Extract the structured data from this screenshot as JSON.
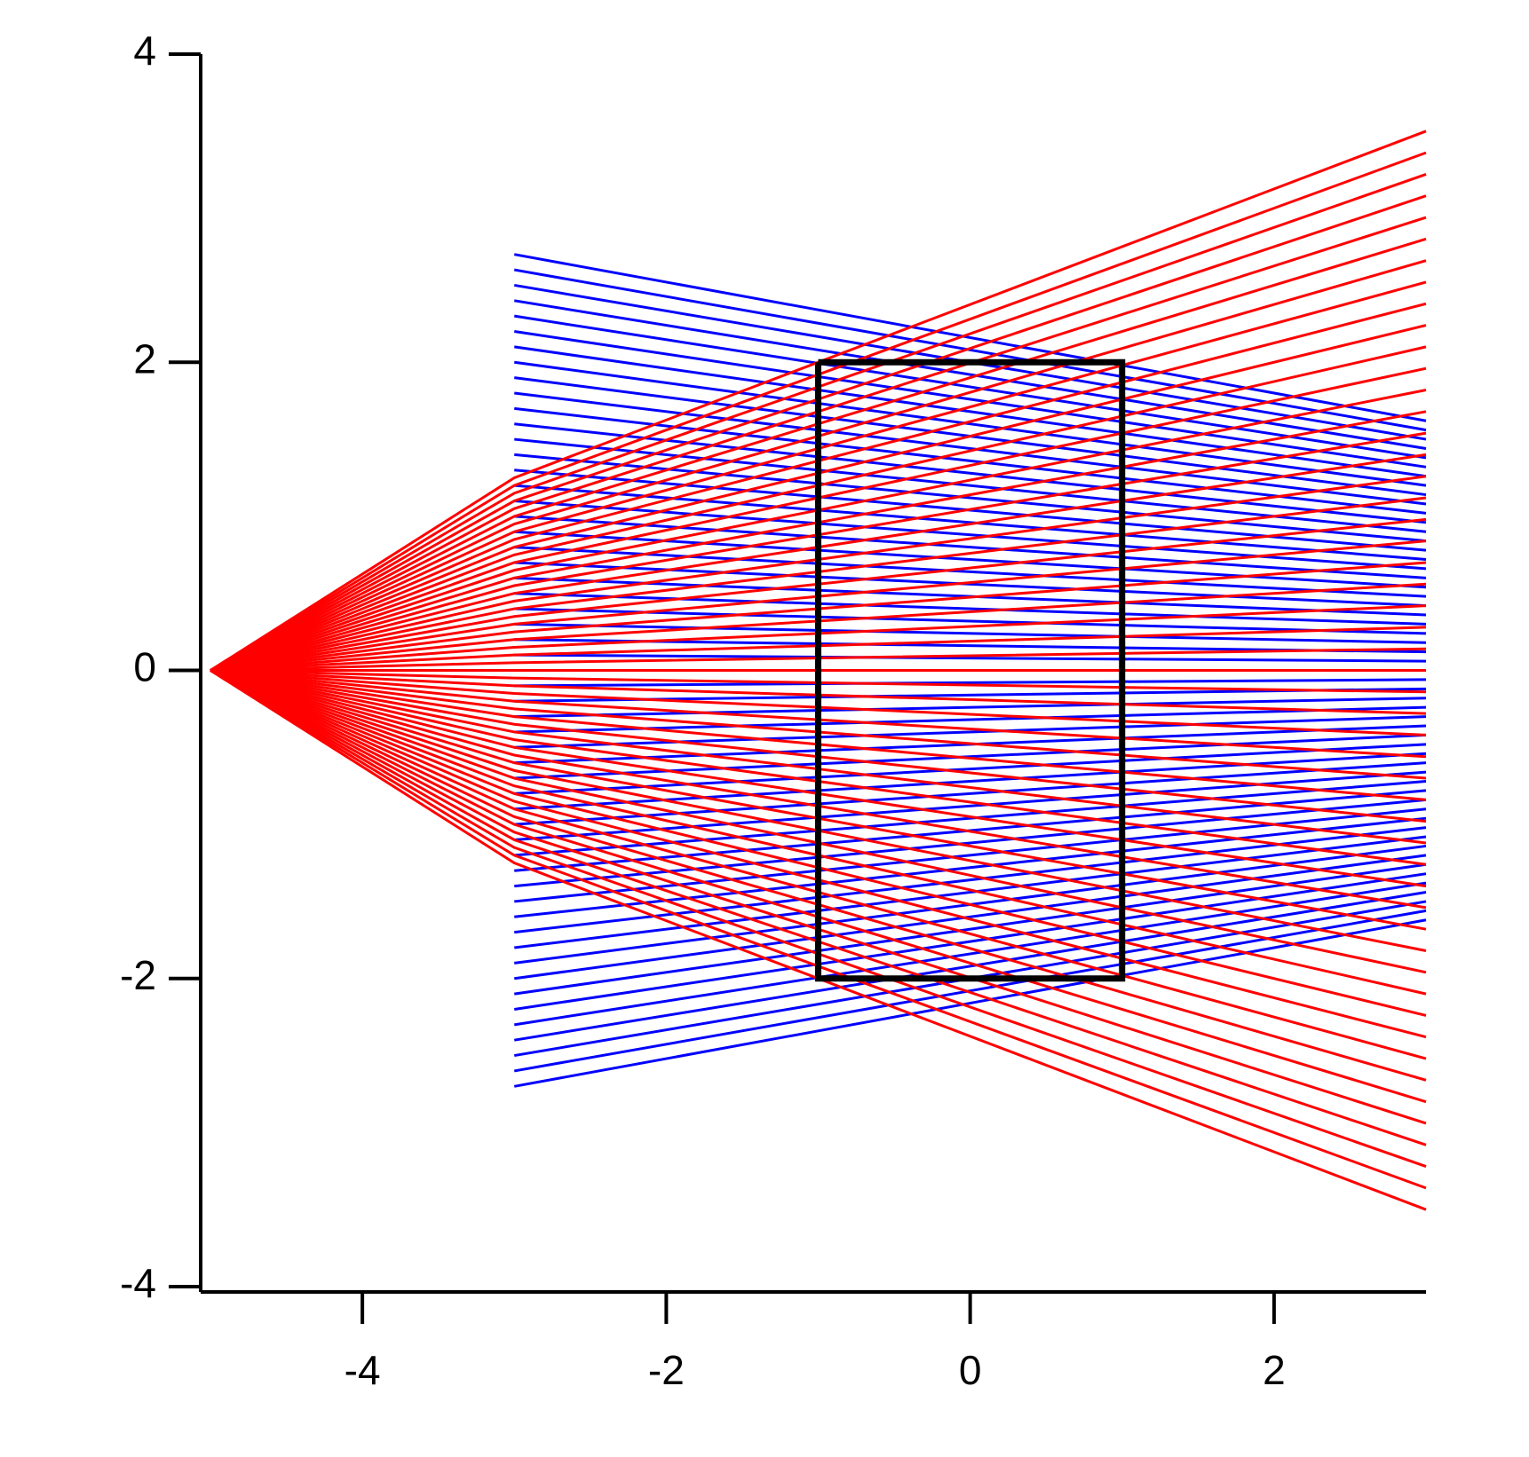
{
  "chart_data": {
    "type": "line",
    "xlim": [
      -5,
      3
    ],
    "ylim": [
      -4,
      4
    ],
    "xticks": [
      -4,
      -2,
      0,
      2
    ],
    "yticks": [
      -4,
      -2,
      0,
      2,
      4
    ],
    "series": [
      {
        "color": "#0000ff",
        "x": [
          -3,
          3
        ],
        "values": [
          2.7,
          1.62
        ]
      },
      {
        "color": "#0000ff",
        "x": [
          -3,
          3
        ],
        "values": [
          2.6,
          1.56
        ]
      },
      {
        "color": "#0000ff",
        "x": [
          -3,
          3
        ],
        "values": [
          2.5,
          1.5
        ]
      },
      {
        "color": "#0000ff",
        "x": [
          -3,
          3
        ],
        "values": [
          2.4,
          1.44
        ]
      },
      {
        "color": "#0000ff",
        "x": [
          -3,
          3
        ],
        "values": [
          2.3,
          1.38
        ]
      },
      {
        "color": "#0000ff",
        "x": [
          -3,
          3
        ],
        "values": [
          2.2,
          1.32
        ]
      },
      {
        "color": "#0000ff",
        "x": [
          -3,
          3
        ],
        "values": [
          2.1,
          1.26
        ]
      },
      {
        "color": "#0000ff",
        "x": [
          -3,
          3
        ],
        "values": [
          2,
          1.2
        ]
      },
      {
        "color": "#0000ff",
        "x": [
          -3,
          3
        ],
        "values": [
          1.9,
          1.14
        ]
      },
      {
        "color": "#0000ff",
        "x": [
          -3,
          3
        ],
        "values": [
          1.8,
          1.08
        ]
      },
      {
        "color": "#0000ff",
        "x": [
          -3,
          3
        ],
        "values": [
          1.7,
          1.02
        ]
      },
      {
        "color": "#0000ff",
        "x": [
          -3,
          3
        ],
        "values": [
          1.6,
          0.96
        ]
      },
      {
        "color": "#0000ff",
        "x": [
          -3,
          3
        ],
        "values": [
          1.5,
          0.9
        ]
      },
      {
        "color": "#0000ff",
        "x": [
          -3,
          3
        ],
        "values": [
          1.4,
          0.84
        ]
      },
      {
        "color": "#0000ff",
        "x": [
          -3,
          3
        ],
        "values": [
          1.3,
          0.78
        ]
      },
      {
        "color": "#0000ff",
        "x": [
          -3,
          3
        ],
        "values": [
          1.2,
          0.72
        ]
      },
      {
        "color": "#0000ff",
        "x": [
          -3,
          3
        ],
        "values": [
          1.1,
          0.66
        ]
      },
      {
        "color": "#0000ff",
        "x": [
          -3,
          3
        ],
        "values": [
          1,
          0.6
        ]
      },
      {
        "color": "#0000ff",
        "x": [
          -3,
          3
        ],
        "values": [
          0.9,
          0.54
        ]
      },
      {
        "color": "#0000ff",
        "x": [
          -3,
          3
        ],
        "values": [
          0.8,
          0.48
        ]
      },
      {
        "color": "#0000ff",
        "x": [
          -3,
          3
        ],
        "values": [
          0.7,
          0.42
        ]
      },
      {
        "color": "#0000ff",
        "x": [
          -3,
          3
        ],
        "values": [
          0.6,
          0.36
        ]
      },
      {
        "color": "#0000ff",
        "x": [
          -3,
          3
        ],
        "values": [
          0.5,
          0.3
        ]
      },
      {
        "color": "#0000ff",
        "x": [
          -3,
          3
        ],
        "values": [
          0.4,
          0.24
        ]
      },
      {
        "color": "#0000ff",
        "x": [
          -3,
          3
        ],
        "values": [
          0.3,
          0.18
        ]
      },
      {
        "color": "#0000ff",
        "x": [
          -3,
          3
        ],
        "values": [
          0.2,
          0.12
        ]
      },
      {
        "color": "#0000ff",
        "x": [
          -3,
          3
        ],
        "values": [
          0.1,
          0.06
        ]
      },
      {
        "color": "#0000ff",
        "x": [
          -3,
          3
        ],
        "values": [
          0,
          0
        ]
      },
      {
        "color": "#0000ff",
        "x": [
          -3,
          3
        ],
        "values": [
          -0.1,
          -0.06
        ]
      },
      {
        "color": "#0000ff",
        "x": [
          -3,
          3
        ],
        "values": [
          -0.2,
          -0.12
        ]
      },
      {
        "color": "#0000ff",
        "x": [
          -3,
          3
        ],
        "values": [
          -0.3,
          -0.18
        ]
      },
      {
        "color": "#0000ff",
        "x": [
          -3,
          3
        ],
        "values": [
          -0.4,
          -0.24
        ]
      },
      {
        "color": "#0000ff",
        "x": [
          -3,
          3
        ],
        "values": [
          -0.5,
          -0.3
        ]
      },
      {
        "color": "#0000ff",
        "x": [
          -3,
          3
        ],
        "values": [
          -0.6,
          -0.36
        ]
      },
      {
        "color": "#0000ff",
        "x": [
          -3,
          3
        ],
        "values": [
          -0.7,
          -0.42
        ]
      },
      {
        "color": "#0000ff",
        "x": [
          -3,
          3
        ],
        "values": [
          -0.8,
          -0.48
        ]
      },
      {
        "color": "#0000ff",
        "x": [
          -3,
          3
        ],
        "values": [
          -0.9,
          -0.54
        ]
      },
      {
        "color": "#0000ff",
        "x": [
          -3,
          3
        ],
        "values": [
          -1,
          -0.6
        ]
      },
      {
        "color": "#0000ff",
        "x": [
          -3,
          3
        ],
        "values": [
          -1.1,
          -0.66
        ]
      },
      {
        "color": "#0000ff",
        "x": [
          -3,
          3
        ],
        "values": [
          -1.2,
          -0.72
        ]
      },
      {
        "color": "#0000ff",
        "x": [
          -3,
          3
        ],
        "values": [
          -1.3,
          -0.78
        ]
      },
      {
        "color": "#0000ff",
        "x": [
          -3,
          3
        ],
        "values": [
          -1.4,
          -0.84
        ]
      },
      {
        "color": "#0000ff",
        "x": [
          -3,
          3
        ],
        "values": [
          -1.5,
          -0.9
        ]
      },
      {
        "color": "#0000ff",
        "x": [
          -3,
          3
        ],
        "values": [
          -1.6,
          -0.96
        ]
      },
      {
        "color": "#0000ff",
        "x": [
          -3,
          3
        ],
        "values": [
          -1.7,
          -1.02
        ]
      },
      {
        "color": "#0000ff",
        "x": [
          -3,
          3
        ],
        "values": [
          -1.8,
          -1.08
        ]
      },
      {
        "color": "#0000ff",
        "x": [
          -3,
          3
        ],
        "values": [
          -1.9,
          -1.14
        ]
      },
      {
        "color": "#0000ff",
        "x": [
          -3,
          3
        ],
        "values": [
          -2,
          -1.2
        ]
      },
      {
        "color": "#0000ff",
        "x": [
          -3,
          3
        ],
        "values": [
          -2.1,
          -1.26
        ]
      },
      {
        "color": "#0000ff",
        "x": [
          -3,
          3
        ],
        "values": [
          -2.2,
          -1.32
        ]
      },
      {
        "color": "#0000ff",
        "x": [
          -3,
          3
        ],
        "values": [
          -2.3,
          -1.38
        ]
      },
      {
        "color": "#0000ff",
        "x": [
          -3,
          3
        ],
        "values": [
          -2.4,
          -1.44
        ]
      },
      {
        "color": "#0000ff",
        "x": [
          -3,
          3
        ],
        "values": [
          -2.5,
          -1.5
        ]
      },
      {
        "color": "#0000ff",
        "x": [
          -3,
          3
        ],
        "values": [
          -2.6,
          -1.56
        ]
      },
      {
        "color": "#0000ff",
        "x": [
          -3,
          3
        ],
        "values": [
          -2.7,
          -1.62
        ]
      },
      {
        "color": "#ff0000",
        "x": [
          -5,
          -3,
          3
        ],
        "values": [
          0,
          -1.25,
          -3.5
        ]
      },
      {
        "color": "#ff0000",
        "x": [
          -5,
          -3,
          3
        ],
        "values": [
          0,
          -1.2,
          -3.36
        ]
      },
      {
        "color": "#ff0000",
        "x": [
          -5,
          -3,
          3
        ],
        "values": [
          0,
          -1.15,
          -3.22
        ]
      },
      {
        "color": "#ff0000",
        "x": [
          -5,
          -3,
          3
        ],
        "values": [
          0,
          -1.1,
          -3.08
        ]
      },
      {
        "color": "#ff0000",
        "x": [
          -5,
          -3,
          3
        ],
        "values": [
          0,
          -1.05,
          -2.94
        ]
      },
      {
        "color": "#ff0000",
        "x": [
          -5,
          -3,
          3
        ],
        "values": [
          0,
          -1,
          -2.8
        ]
      },
      {
        "color": "#ff0000",
        "x": [
          -5,
          -3,
          3
        ],
        "values": [
          0,
          -0.95,
          -2.66
        ]
      },
      {
        "color": "#ff0000",
        "x": [
          -5,
          -3,
          3
        ],
        "values": [
          0,
          -0.9,
          -2.52
        ]
      },
      {
        "color": "#ff0000",
        "x": [
          -5,
          -3,
          3
        ],
        "values": [
          0,
          -0.85,
          -2.38
        ]
      },
      {
        "color": "#ff0000",
        "x": [
          -5,
          -3,
          3
        ],
        "values": [
          0,
          -0.8,
          -2.24
        ]
      },
      {
        "color": "#ff0000",
        "x": [
          -5,
          -3,
          3
        ],
        "values": [
          0,
          -0.75,
          -2.1
        ]
      },
      {
        "color": "#ff0000",
        "x": [
          -5,
          -3,
          3
        ],
        "values": [
          0,
          -0.7,
          -1.96
        ]
      },
      {
        "color": "#ff0000",
        "x": [
          -5,
          -3,
          3
        ],
        "values": [
          0,
          -0.65,
          -1.82
        ]
      },
      {
        "color": "#ff0000",
        "x": [
          -5,
          -3,
          3
        ],
        "values": [
          0,
          -0.6,
          -1.68
        ]
      },
      {
        "color": "#ff0000",
        "x": [
          -5,
          -3,
          3
        ],
        "values": [
          0,
          -0.55,
          -1.54
        ]
      },
      {
        "color": "#ff0000",
        "x": [
          -5,
          -3,
          3
        ],
        "values": [
          0,
          -0.5,
          -1.4
        ]
      },
      {
        "color": "#ff0000",
        "x": [
          -5,
          -3,
          3
        ],
        "values": [
          0,
          -0.45,
          -1.26
        ]
      },
      {
        "color": "#ff0000",
        "x": [
          -5,
          -3,
          3
        ],
        "values": [
          0,
          -0.4,
          -1.12
        ]
      },
      {
        "color": "#ff0000",
        "x": [
          -5,
          -3,
          3
        ],
        "values": [
          0,
          -0.35,
          -0.98
        ]
      },
      {
        "color": "#ff0000",
        "x": [
          -5,
          -3,
          3
        ],
        "values": [
          0,
          -0.3,
          -0.84
        ]
      },
      {
        "color": "#ff0000",
        "x": [
          -5,
          -3,
          3
        ],
        "values": [
          0,
          -0.25,
          -0.7
        ]
      },
      {
        "color": "#ff0000",
        "x": [
          -5,
          -3,
          3
        ],
        "values": [
          0,
          -0.2,
          -0.56
        ]
      },
      {
        "color": "#ff0000",
        "x": [
          -5,
          -3,
          3
        ],
        "values": [
          0,
          -0.15,
          -0.42
        ]
      },
      {
        "color": "#ff0000",
        "x": [
          -5,
          -3,
          3
        ],
        "values": [
          0,
          -0.1,
          -0.28
        ]
      },
      {
        "color": "#ff0000",
        "x": [
          -5,
          -3,
          3
        ],
        "values": [
          0,
          -0.05,
          -0.14
        ]
      },
      {
        "color": "#ff0000",
        "x": [
          -5,
          -3,
          3
        ],
        "values": [
          0,
          0,
          0
        ]
      },
      {
        "color": "#ff0000",
        "x": [
          -5,
          -3,
          3
        ],
        "values": [
          0,
          0.05,
          0.14
        ]
      },
      {
        "color": "#ff0000",
        "x": [
          -5,
          -3,
          3
        ],
        "values": [
          0,
          0.1,
          0.28
        ]
      },
      {
        "color": "#ff0000",
        "x": [
          -5,
          -3,
          3
        ],
        "values": [
          0,
          0.15,
          0.42
        ]
      },
      {
        "color": "#ff0000",
        "x": [
          -5,
          -3,
          3
        ],
        "values": [
          0,
          0.2,
          0.56
        ]
      },
      {
        "color": "#ff0000",
        "x": [
          -5,
          -3,
          3
        ],
        "values": [
          0,
          0.25,
          0.7
        ]
      },
      {
        "color": "#ff0000",
        "x": [
          -5,
          -3,
          3
        ],
        "values": [
          0,
          0.3,
          0.84
        ]
      },
      {
        "color": "#ff0000",
        "x": [
          -5,
          -3,
          3
        ],
        "values": [
          0,
          0.35,
          0.98
        ]
      },
      {
        "color": "#ff0000",
        "x": [
          -5,
          -3,
          3
        ],
        "values": [
          0,
          0.4,
          1.12
        ]
      },
      {
        "color": "#ff0000",
        "x": [
          -5,
          -3,
          3
        ],
        "values": [
          0,
          0.45,
          1.26
        ]
      },
      {
        "color": "#ff0000",
        "x": [
          -5,
          -3,
          3
        ],
        "values": [
          0,
          0.5,
          1.4
        ]
      },
      {
        "color": "#ff0000",
        "x": [
          -5,
          -3,
          3
        ],
        "values": [
          0,
          0.55,
          1.54
        ]
      },
      {
        "color": "#ff0000",
        "x": [
          -5,
          -3,
          3
        ],
        "values": [
          0,
          0.6,
          1.68
        ]
      },
      {
        "color": "#ff0000",
        "x": [
          -5,
          -3,
          3
        ],
        "values": [
          0,
          0.65,
          1.82
        ]
      },
      {
        "color": "#ff0000",
        "x": [
          -5,
          -3,
          3
        ],
        "values": [
          0,
          0.7,
          1.96
        ]
      },
      {
        "color": "#ff0000",
        "x": [
          -5,
          -3,
          3
        ],
        "values": [
          0,
          0.75,
          2.1
        ]
      },
      {
        "color": "#ff0000",
        "x": [
          -5,
          -3,
          3
        ],
        "values": [
          0,
          0.8,
          2.24
        ]
      },
      {
        "color": "#ff0000",
        "x": [
          -5,
          -3,
          3
        ],
        "values": [
          0,
          0.85,
          2.38
        ]
      },
      {
        "color": "#ff0000",
        "x": [
          -5,
          -3,
          3
        ],
        "values": [
          0,
          0.9,
          2.52
        ]
      },
      {
        "color": "#ff0000",
        "x": [
          -5,
          -3,
          3
        ],
        "values": [
          0,
          0.95,
          2.66
        ]
      },
      {
        "color": "#ff0000",
        "x": [
          -5,
          -3,
          3
        ],
        "values": [
          0,
          1,
          2.8
        ]
      },
      {
        "color": "#ff0000",
        "x": [
          -5,
          -3,
          3
        ],
        "values": [
          0,
          1.05,
          2.94
        ]
      },
      {
        "color": "#ff0000",
        "x": [
          -5,
          -3,
          3
        ],
        "values": [
          0,
          1.1,
          3.08
        ]
      },
      {
        "color": "#ff0000",
        "x": [
          -5,
          -3,
          3
        ],
        "values": [
          0,
          1.15,
          3.22
        ]
      },
      {
        "color": "#ff0000",
        "x": [
          -5,
          -3,
          3
        ],
        "values": [
          0,
          1.2,
          3.36
        ]
      },
      {
        "color": "#ff0000",
        "x": [
          -5,
          -3,
          3
        ],
        "values": [
          0,
          1.25,
          3.5
        ]
      },
      {
        "color": "#000000",
        "x": [
          -1,
          1,
          1,
          -1,
          -1
        ],
        "values": [
          2,
          2,
          -2,
          -2,
          2
        ]
      }
    ]
  }
}
